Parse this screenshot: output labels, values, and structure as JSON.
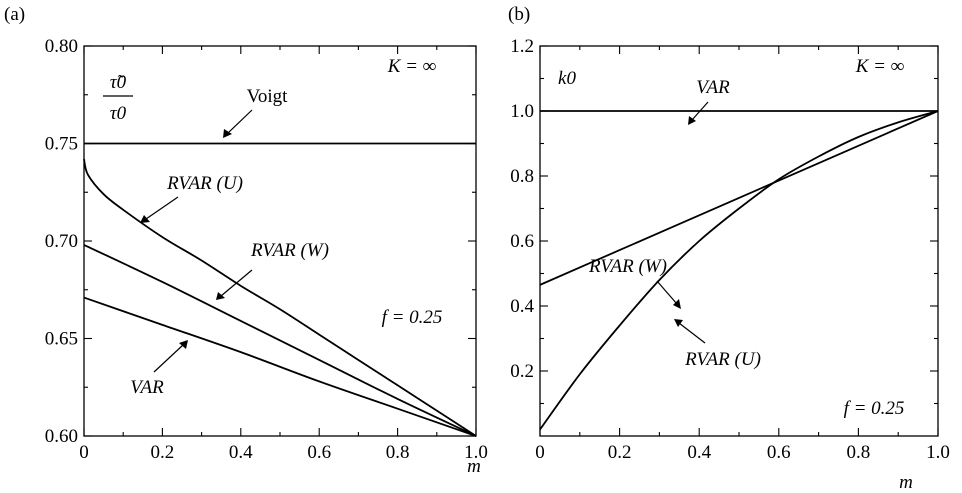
{
  "chart_data": [
    {
      "type": "line",
      "panel_label": "(a)",
      "xlabel": "m",
      "ylabel_top": "τ̃0",
      "ylabel_bottom": "τ0",
      "xlim": [
        0,
        1.0
      ],
      "ylim": [
        0.6,
        0.8
      ],
      "xticks": [
        "0",
        "0.2",
        "0.4",
        "0.6",
        "0.8",
        "1.0"
      ],
      "yticks": [
        "0.60",
        "0.65",
        "0.70",
        "0.75",
        "0.80"
      ],
      "annotations": {
        "K": "K = ∞",
        "f": "f = 0.25"
      },
      "series": [
        {
          "name": "Voigt",
          "x": [
            0,
            0.2,
            0.4,
            0.6,
            0.8,
            1.0
          ],
          "y": [
            0.75,
            0.75,
            0.75,
            0.75,
            0.75,
            0.75
          ]
        },
        {
          "name": "RVAR (U)",
          "x": [
            0,
            0.01,
            0.05,
            0.1,
            0.2,
            0.3,
            0.4,
            0.5,
            0.6,
            0.7,
            0.8,
            0.9,
            1.0
          ],
          "y": [
            0.742,
            0.734,
            0.724,
            0.716,
            0.702,
            0.69,
            0.677,
            0.665,
            0.652,
            0.639,
            0.626,
            0.613,
            0.6
          ]
        },
        {
          "name": "RVAR (W)",
          "x": [
            0,
            0.2,
            0.4,
            0.6,
            0.8,
            1.0
          ],
          "y": [
            0.698,
            0.679,
            0.659,
            0.639,
            0.619,
            0.6
          ]
        },
        {
          "name": "VAR",
          "x": [
            0,
            0.2,
            0.4,
            0.6,
            0.8,
            1.0
          ],
          "y": [
            0.671,
            0.657,
            0.643,
            0.628,
            0.614,
            0.6
          ]
        }
      ]
    },
    {
      "type": "line",
      "panel_label": "(b)",
      "xlabel": "m",
      "ylabel_top": "k0",
      "xlim": [
        0,
        1.0
      ],
      "ylim": [
        0,
        1.2
      ],
      "xticks": [
        "0",
        "0.2",
        "0.4",
        "0.6",
        "0.8",
        "1.0"
      ],
      "yticks": [
        "0.2",
        "0.4",
        "0.6",
        "0.8",
        "1.0",
        "1.2"
      ],
      "annotations": {
        "K": "K = ∞",
        "f": "f = 0.25"
      },
      "series": [
        {
          "name": "VAR",
          "x": [
            0,
            0.2,
            0.4,
            0.6,
            0.8,
            1.0
          ],
          "y": [
            1.0,
            1.0,
            1.0,
            1.0,
            1.0,
            1.0
          ]
        },
        {
          "name": "RVAR (W)",
          "x": [
            0,
            0.2,
            0.4,
            0.6,
            0.8,
            1.0
          ],
          "y": [
            0.465,
            0.572,
            0.679,
            0.786,
            0.893,
            1.0
          ]
        },
        {
          "name": "RVAR (U)",
          "x": [
            0,
            0.1,
            0.2,
            0.3,
            0.4,
            0.5,
            0.6,
            0.7,
            0.8,
            0.9,
            1.0
          ],
          "y": [
            0.02,
            0.19,
            0.34,
            0.48,
            0.6,
            0.7,
            0.79,
            0.86,
            0.92,
            0.965,
            1.0
          ]
        }
      ]
    }
  ]
}
